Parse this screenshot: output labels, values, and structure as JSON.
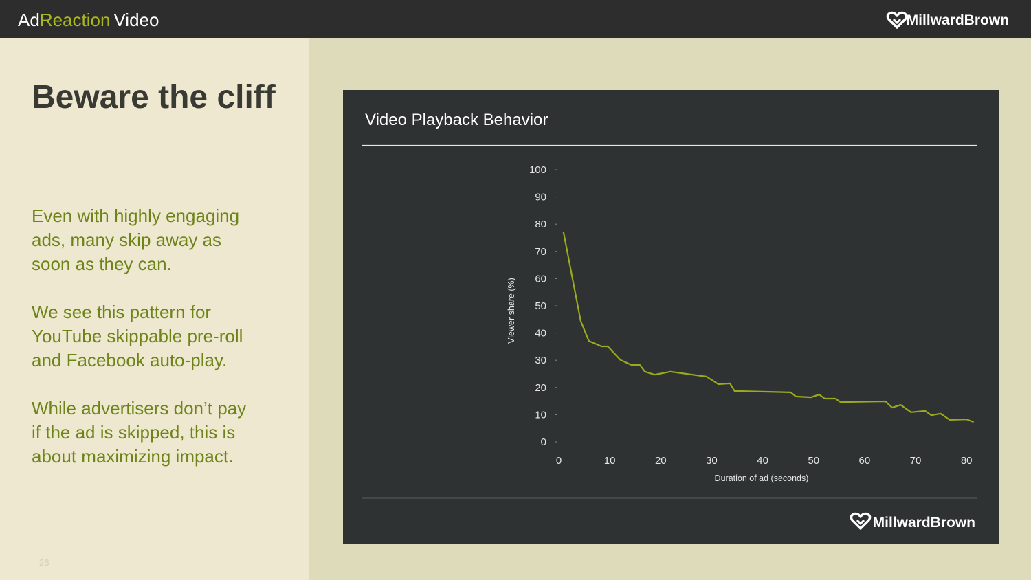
{
  "header": {
    "brand_prefix": "Ad",
    "brand_highlight": "Reaction",
    "brand_suffix": "Video",
    "logo": "MillwardBrown"
  },
  "slide": {
    "title": "Beware the cliff",
    "paragraphs": [
      {
        "lines": [
          "Even with highly engaging",
          "ads, many skip away as",
          "soon as they can."
        ]
      },
      {
        "lines": [
          "We see this pattern for",
          "YouTube skippable pre-roll",
          "and Facebook auto-play."
        ]
      },
      {
        "lines": [
          "While advertisers don’t pay",
          "if the ad is skipped, this is",
          "about maximizing impact."
        ]
      }
    ],
    "page_number": "26"
  },
  "chart_logo": "MillwardBrown",
  "chart_data": {
    "type": "line",
    "title": "Video Playback Behavior",
    "x_label": "Duration of ad (seconds)",
    "y_label": "Viewer share (%)",
    "x": [
      0.9,
      4.3,
      5.9,
      8.4,
      9.6,
      12.1,
      14.2,
      15.9,
      16.9,
      18.8,
      21.9,
      29.0,
      31.3,
      33.6,
      34.5,
      45.5,
      46.5,
      49.5,
      51.1,
      52.2,
      54.3,
      55.3,
      64.1,
      65.4,
      67.1,
      69.1,
      71.9,
      73.1,
      74.9,
      76.7,
      80.0,
      81.4
    ],
    "values": [
      77.3,
      44.4,
      37.1,
      35.1,
      35.1,
      30.1,
      28.3,
      28.3,
      25.8,
      24.7,
      25.8,
      24.0,
      21.2,
      21.5,
      18.7,
      18.2,
      16.7,
      16.4,
      17.4,
      15.9,
      15.9,
      14.6,
      14.9,
      12.6,
      13.6,
      10.9,
      11.4,
      9.8,
      10.4,
      8.1,
      8.3,
      7.3
    ],
    "color": "#9aaa1e",
    "xlim": [
      0,
      82
    ],
    "ylim": [
      0,
      100
    ],
    "xticks": [
      0,
      10,
      20,
      30,
      40,
      50,
      60,
      70,
      80
    ],
    "yticks": [
      0,
      10,
      20,
      30,
      40,
      50,
      60,
      70,
      80,
      90,
      100
    ],
    "grid": false
  }
}
